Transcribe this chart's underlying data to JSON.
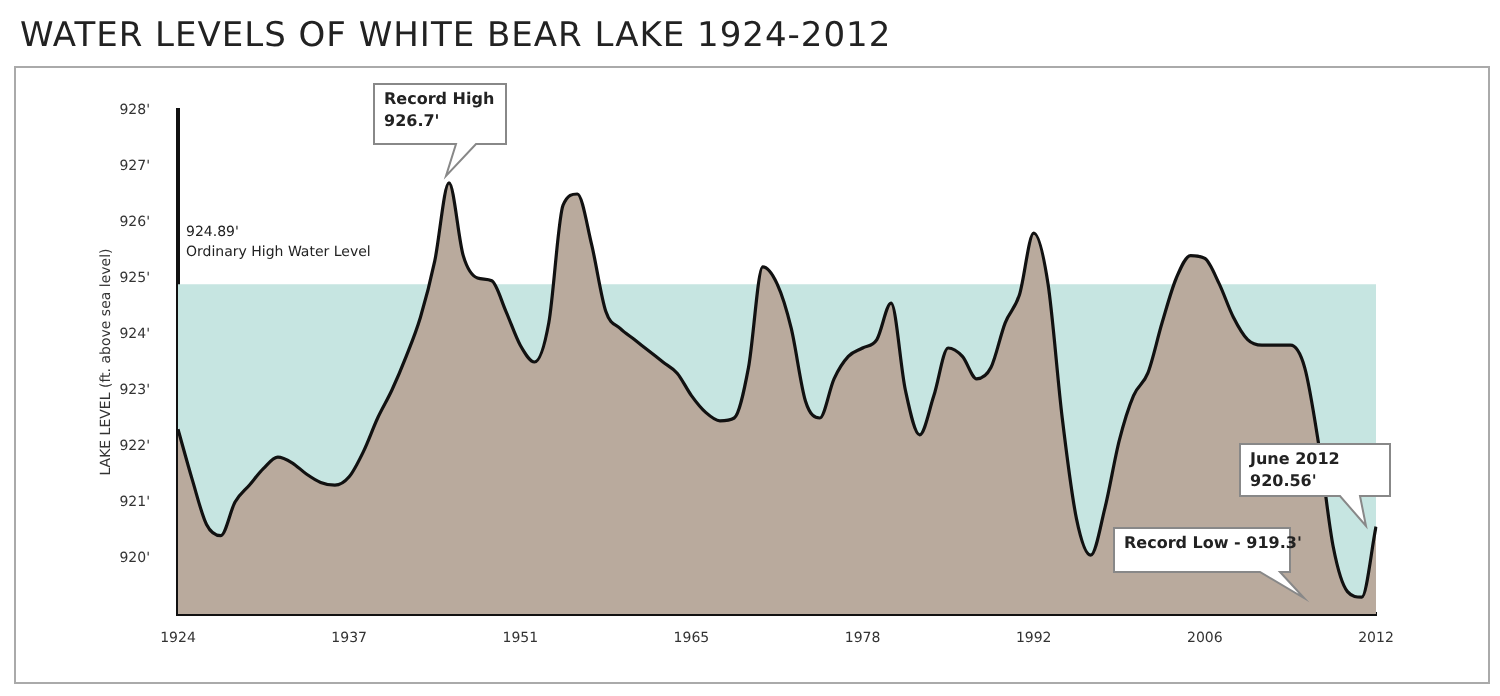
{
  "chart_data": {
    "type": "area",
    "title": "WATER LEVELS OF WHITE BEAR LAKE 1924-2012",
    "ylabel": "LAKE LEVEL (ft. above sea level)",
    "categories": [
      "1924",
      null,
      null,
      null,
      null,
      null,
      null,
      null,
      null,
      null,
      null,
      null,
      "1937",
      null,
      null,
      null,
      null,
      null,
      null,
      null,
      null,
      null,
      null,
      null,
      "1951",
      null,
      null,
      null,
      null,
      null,
      null,
      null,
      null,
      null,
      null,
      null,
      "1965",
      null,
      null,
      null,
      null,
      null,
      null,
      null,
      null,
      null,
      null,
      null,
      "1978",
      null,
      null,
      null,
      null,
      null,
      null,
      null,
      null,
      null,
      null,
      null,
      "1992",
      null,
      null,
      null,
      null,
      null,
      null,
      null,
      null,
      null,
      null,
      null,
      "2006",
      null,
      null,
      null,
      null,
      null,
      null,
      null,
      null,
      null,
      null,
      null,
      "2012"
    ],
    "values": [
      922.3,
      921.4,
      920.6,
      920.4,
      921.0,
      921.3,
      921.6,
      921.8,
      921.7,
      921.5,
      921.35,
      921.3,
      921.45,
      921.9,
      922.5,
      923.0,
      923.6,
      924.3,
      925.3,
      926.7,
      925.4,
      925.0,
      924.95,
      924.4,
      923.8,
      923.5,
      924.2,
      926.3,
      926.5,
      925.6,
      924.4,
      924.1,
      923.9,
      923.7,
      923.5,
      923.3,
      922.9,
      922.6,
      922.45,
      922.5,
      923.4,
      925.2,
      924.9,
      924.1,
      922.8,
      922.5,
      923.2,
      923.6,
      923.75,
      923.9,
      924.55,
      923.0,
      922.2,
      922.9,
      923.75,
      923.6,
      923.2,
      923.4,
      924.2,
      924.7,
      925.8,
      924.9,
      922.5,
      920.7,
      920.05,
      920.9,
      922.1,
      922.9,
      923.3,
      924.2,
      925.0,
      925.4,
      925.35,
      924.9,
      924.3,
      923.9,
      923.8,
      923.8,
      923.8,
      923.4,
      922.0,
      920.2,
      919.4,
      919.3,
      920.56
    ],
    "color": "#b9aa9d",
    "marker": "none",
    "ylim": [
      919,
      928
    ],
    "yticks": [
      {
        "value": 920,
        "label": "920'"
      },
      {
        "value": 921,
        "label": "921'"
      },
      {
        "value": 922,
        "label": "922'"
      },
      {
        "value": 923,
        "label": "923'"
      },
      {
        "value": 924,
        "label": "924'"
      },
      {
        "value": 925,
        "label": "925'"
      },
      {
        "value": 926,
        "label": "926'"
      },
      {
        "value": 927,
        "label": "927'"
      },
      {
        "value": 928,
        "label": "928'"
      }
    ],
    "bands": [
      {
        "axis": "y",
        "from": 919,
        "to": 924.89,
        "label": "924.89' Ordinary High Water Level",
        "color": "#c6e5e1"
      }
    ],
    "annotations": [
      "Record High\n926.7'",
      "June 2012\n920.56'",
      "Record Low - 919.3'"
    ]
  }
}
